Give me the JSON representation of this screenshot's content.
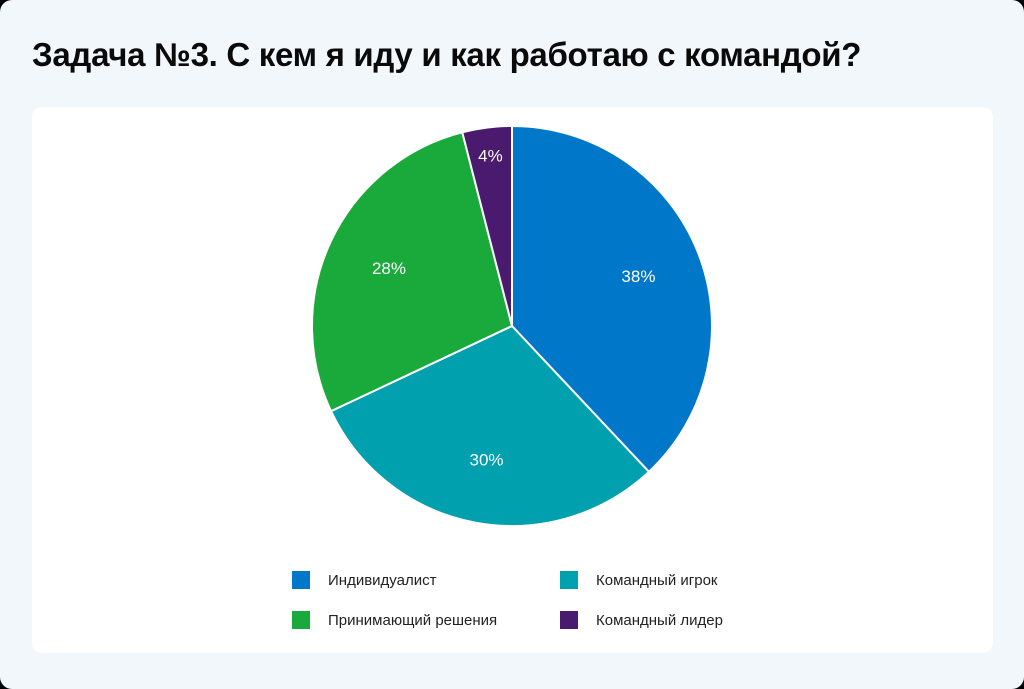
{
  "title": "Задача №3. С кем я иду и как работаю с командой?",
  "chart_data": {
    "type": "pie",
    "title": "Задача №3. С кем я иду и как работаю с командой?",
    "categories": [
      "Индивидуалист",
      "Командный игрок",
      "Принимающий решения",
      "Командный лидер"
    ],
    "values": [
      38,
      30,
      28,
      4
    ],
    "labels": [
      "38%",
      "30%",
      "28%",
      "4%"
    ],
    "colors": [
      "#0077c8",
      "#00a0af",
      "#1aaa3c",
      "#4a1a6e"
    ],
    "start_angle": "12 o'clock",
    "direction": "clockwise",
    "legend_position": "bottom"
  },
  "legend": [
    {
      "label": "Индивидуалист",
      "color": "#0077c8"
    },
    {
      "label": "Командный игрок",
      "color": "#00a0af"
    },
    {
      "label": "Принимающий решения",
      "color": "#1aaa3c"
    },
    {
      "label": "Командный лидер",
      "color": "#4a1a6e"
    }
  ]
}
